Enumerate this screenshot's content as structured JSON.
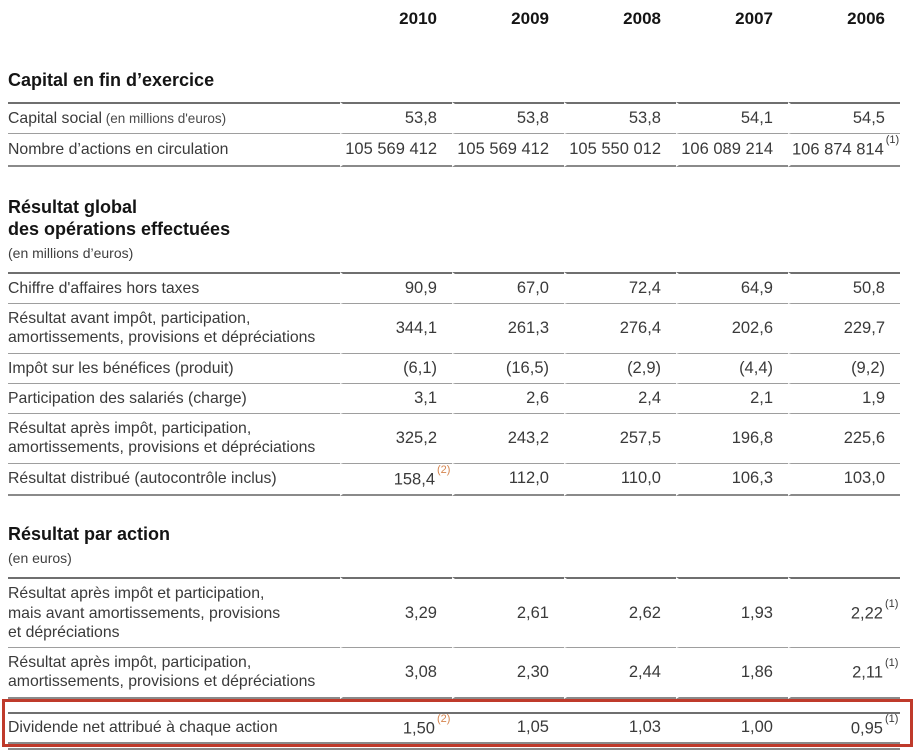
{
  "page": {
    "years": [
      "2010",
      "2009",
      "2008",
      "2007",
      "2006"
    ]
  },
  "colors": {
    "accent_orange": "#d5854f",
    "highlight_red": "#bf3a2b",
    "rule_gray": "#8a8a8a"
  },
  "sections": [
    {
      "title": "Capital en fin d’exercice",
      "note": "",
      "rows": [
        {
          "label": "Capital social",
          "note": "(en millions d'euros)",
          "values": [
            "53,8",
            "53,8",
            "53,8",
            "54,1",
            "54,5"
          ],
          "sups": [
            "",
            "",
            "",
            "",
            ""
          ]
        },
        {
          "label": "Nombre d’actions en circulation",
          "values": [
            "105 569 412",
            "105 569 412",
            "105 550 012",
            "106 089 214",
            "106 874 814"
          ],
          "sups": [
            "",
            "",
            "",
            "",
            "(1)"
          ]
        }
      ]
    },
    {
      "title": "Résultat global\ndes opérations effectuées",
      "note": "(en millions d’euros)",
      "rows": [
        {
          "label": "Chiffre d'affaires hors taxes",
          "values": [
            "90,9",
            "67,0",
            "72,4",
            "64,9",
            "50,8"
          ],
          "sups": [
            "",
            "",
            "",
            "",
            ""
          ]
        },
        {
          "label": "Résultat avant impôt, participation,\namortissements, provisions et dépréciations",
          "values": [
            "344,1",
            "261,3",
            "276,4",
            "202,6",
            "229,7"
          ],
          "sups": [
            "",
            "",
            "",
            "",
            ""
          ]
        },
        {
          "label": "Impôt sur les bénéfices (produit)",
          "values": [
            "(6,1)",
            "(16,5)",
            "(2,9)",
            "(4,4)",
            "(9,2)"
          ],
          "sups": [
            "",
            "",
            "",
            "",
            ""
          ]
        },
        {
          "label": "Participation des salariés (charge)",
          "values": [
            "3,1",
            "2,6",
            "2,4",
            "2,1",
            "1,9"
          ],
          "sups": [
            "",
            "",
            "",
            "",
            ""
          ]
        },
        {
          "label": "Résultat après impôt, participation,\namortissements, provisions et dépréciations",
          "values": [
            "325,2",
            "243,2",
            "257,5",
            "196,8",
            "225,6"
          ],
          "sups": [
            "",
            "",
            "",
            "",
            ""
          ]
        },
        {
          "label": "Résultat distribué (autocontrôle inclus)",
          "values": [
            "158,4",
            "112,0",
            "110,0",
            "106,3",
            "103,0"
          ],
          "sups": [
            "(2)",
            "",
            "",
            "",
            ""
          ]
        }
      ]
    },
    {
      "title": "Résultat par action",
      "note": "(en euros)",
      "rows": [
        {
          "label": "Résultat après impôt et participation,\nmais avant amortissements, provisions\net dépréciations",
          "values": [
            "3,29",
            "2,61",
            "2,62",
            "1,93",
            "2,22"
          ],
          "sups": [
            "",
            "",
            "",
            "",
            "(1)"
          ]
        },
        {
          "label": "Résultat après impôt, participation,\namortissements, provisions et dépréciations",
          "values": [
            "3,08",
            "2,30",
            "2,44",
            "1,86",
            "2,11"
          ],
          "sups": [
            "",
            "",
            "",
            "",
            "(1)"
          ]
        },
        {
          "label": "Dividende net attribué à chaque action",
          "values": [
            "1,50",
            "1,05",
            "1,03",
            "1,00",
            "0,95"
          ],
          "sups": [
            "(2)",
            "",
            "",
            "",
            "(1)"
          ],
          "highlighted": true
        }
      ]
    }
  ]
}
